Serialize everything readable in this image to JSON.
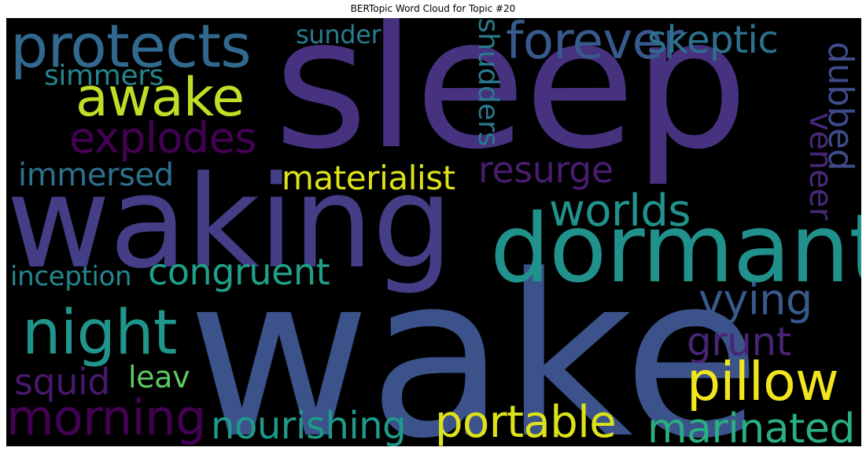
{
  "title": "BERTopic Word Cloud for Topic #20",
  "background": "#000000",
  "words": [
    {
      "text": "sleep",
      "color": "#46327e"
    },
    {
      "text": "wake",
      "color": "#3b528b"
    },
    {
      "text": "waking",
      "color": "#433e85"
    },
    {
      "text": "dormant",
      "color": "#21918c"
    },
    {
      "text": "protects",
      "color": "#31688e"
    },
    {
      "text": "forever",
      "color": "#38598c"
    },
    {
      "text": "skeptic",
      "color": "#2c728e"
    },
    {
      "text": "sunder",
      "color": "#287c8e"
    },
    {
      "text": "simmers",
      "color": "#25858e"
    },
    {
      "text": "awake",
      "color": "#bddf26"
    },
    {
      "text": "explodes",
      "color": "#440154"
    },
    {
      "text": "shudders",
      "color": "#2a788e"
    },
    {
      "text": "dubbed",
      "color": "#3e4a89"
    },
    {
      "text": "veneer",
      "color": "#482878"
    },
    {
      "text": "immersed",
      "color": "#2c718e"
    },
    {
      "text": "materialist",
      "color": "#dde318"
    },
    {
      "text": "resurge",
      "color": "#481c6e"
    },
    {
      "text": "worlds",
      "color": "#20938c"
    },
    {
      "text": "inception",
      "color": "#23888e"
    },
    {
      "text": "congruent",
      "color": "#1fa088"
    },
    {
      "text": "vying",
      "color": "#38598c"
    },
    {
      "text": "night",
      "color": "#1f958b"
    },
    {
      "text": "grunt",
      "color": "#482475"
    },
    {
      "text": "squid",
      "color": "#48186a"
    },
    {
      "text": "leav",
      "color": "#5ec962"
    },
    {
      "text": "pillow",
      "color": "#f1e51d"
    },
    {
      "text": "morning",
      "color": "#440154"
    },
    {
      "text": "nourishing",
      "color": "#1f9a8a"
    },
    {
      "text": "portable",
      "color": "#dde318"
    },
    {
      "text": "marinated",
      "color": "#2ab07f"
    }
  ]
}
